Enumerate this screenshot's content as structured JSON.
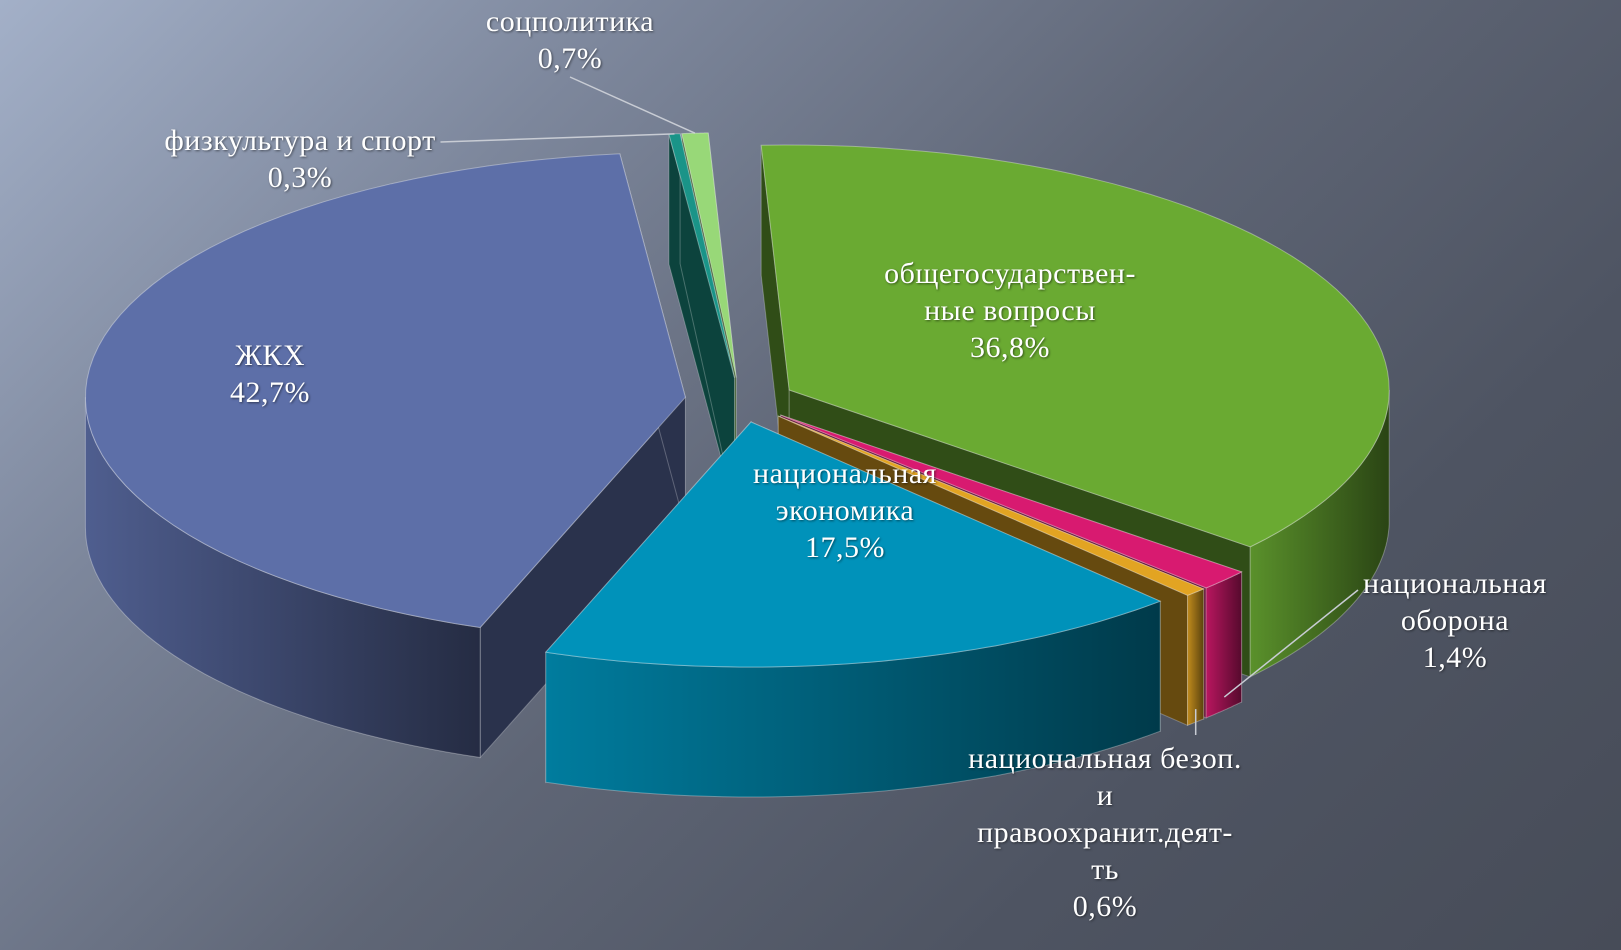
{
  "chart_data": {
    "type": "pie3d",
    "categories": [
      "ЖКХ",
      "физкультура и спорт",
      "соцполитика",
      "общегосударствен-\nные вопросы",
      "национальная\nоборона",
      "национальная безоп.\nи\nправоохранит.деят-\nть",
      "национальная\nэкономика"
    ],
    "values": [
      42.7,
      0.3,
      0.7,
      36.8,
      1.4,
      0.6,
      17.5
    ],
    "value_labels": [
      "42,7%",
      "0,3%",
      "0,7%",
      "36,8%",
      "1,4%",
      "0,6%",
      "17,5%"
    ],
    "colors": [
      "#5d6fa8",
      "#1a9488",
      "#98d878",
      "#6aaa32",
      "#d81a70",
      "#e2a422",
      "#0092ba"
    ]
  }
}
